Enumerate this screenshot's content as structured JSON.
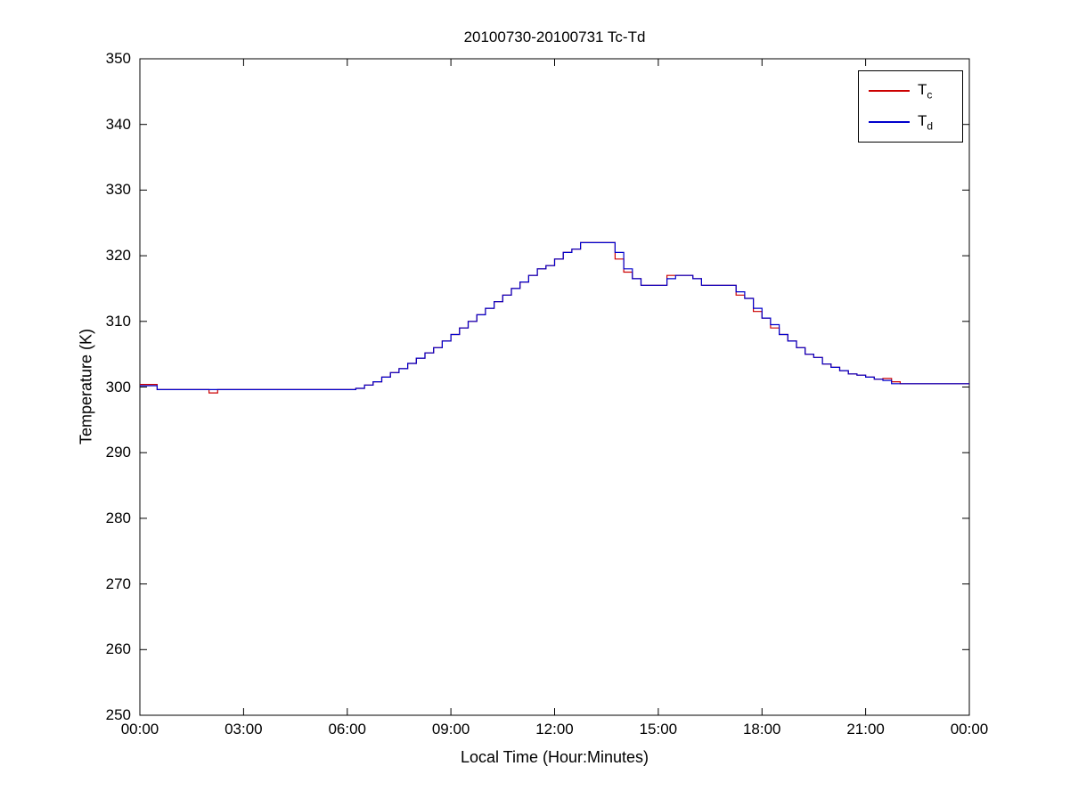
{
  "figure": {
    "background": "#ffffff",
    "axis_color": "#000000"
  },
  "chart_data": {
    "type": "line",
    "title": "20100730-20100731 Tc-Td",
    "xlabel": "Local Time (Hour:Minutes)",
    "ylabel": "Temperature (K)",
    "xlim": [
      0,
      24
    ],
    "ylim": [
      250,
      350
    ],
    "x_ticks": [
      0,
      3,
      6,
      9,
      12,
      15,
      18,
      21,
      24
    ],
    "x_tick_labels": [
      "00:00",
      "03:00",
      "06:00",
      "09:00",
      "12:00",
      "15:00",
      "18:00",
      "21:00",
      "00:00"
    ],
    "y_ticks": [
      250,
      260,
      270,
      280,
      290,
      300,
      310,
      320,
      330,
      340,
      350
    ],
    "y_tick_labels": [
      "250",
      "260",
      "270",
      "280",
      "290",
      "300",
      "310",
      "320",
      "330",
      "340",
      "350"
    ],
    "grid": false,
    "legend_position": "top-right",
    "interpolation": "step-after",
    "x_start_hours": 0,
    "x_step_hours": 0.25,
    "series": [
      {
        "name": "Tc",
        "label_main": "T",
        "label_sub": "c",
        "color": "#cc0000",
        "values": [
          300.4,
          300.4,
          299.6,
          299.6,
          299.6,
          299.6,
          299.6,
          299.6,
          299.1,
          299.6,
          299.6,
          299.6,
          299.6,
          299.6,
          299.6,
          299.6,
          299.6,
          299.6,
          299.6,
          299.6,
          299.6,
          299.6,
          299.6,
          299.6,
          299.6,
          299.8,
          300.3,
          300.8,
          301.5,
          302.2,
          302.8,
          303.6,
          304.4,
          305.2,
          306.0,
          307.0,
          308.0,
          309.0,
          310.0,
          311.0,
          312.0,
          313.0,
          314.0,
          315.0,
          316.0,
          317.0,
          318.0,
          318.5,
          319.5,
          320.5,
          321.0,
          322.0,
          322.0,
          322.0,
          322.0,
          319.5,
          317.5,
          316.5,
          315.5,
          315.5,
          315.5,
          317.0,
          317.0,
          317.0,
          316.5,
          315.5,
          315.5,
          315.5,
          315.5,
          314.0,
          313.5,
          311.5,
          310.5,
          309.0,
          308.0,
          307.0,
          306.0,
          305.0,
          304.5,
          303.5,
          303.0,
          302.5,
          302.0,
          301.8,
          301.5,
          301.2,
          301.3,
          300.8,
          300.5,
          300.5,
          300.5,
          300.5,
          300.5,
          300.5,
          300.5,
          300.5,
          300.5
        ]
      },
      {
        "name": "Td",
        "label_main": "T",
        "label_sub": "d",
        "color": "#0000cc",
        "values": [
          300.2,
          300.2,
          299.6,
          299.6,
          299.6,
          299.6,
          299.6,
          299.6,
          299.6,
          299.6,
          299.6,
          299.6,
          299.6,
          299.6,
          299.6,
          299.6,
          299.6,
          299.6,
          299.6,
          299.6,
          299.6,
          299.6,
          299.6,
          299.6,
          299.6,
          299.8,
          300.3,
          300.8,
          301.5,
          302.2,
          302.8,
          303.6,
          304.4,
          305.2,
          306.0,
          307.0,
          308.0,
          309.0,
          310.0,
          311.0,
          312.0,
          313.0,
          314.0,
          315.0,
          316.0,
          317.0,
          318.0,
          318.5,
          319.5,
          320.5,
          321.0,
          322.0,
          322.0,
          322.0,
          322.0,
          320.5,
          318.0,
          316.5,
          315.5,
          315.5,
          315.5,
          316.5,
          317.0,
          317.0,
          316.5,
          315.5,
          315.5,
          315.5,
          315.5,
          314.5,
          313.5,
          312.0,
          310.5,
          309.5,
          308.0,
          307.0,
          306.0,
          305.0,
          304.5,
          303.5,
          303.0,
          302.5,
          302.0,
          301.8,
          301.5,
          301.2,
          301.0,
          300.5,
          300.5,
          300.5,
          300.5,
          300.5,
          300.5,
          300.5,
          300.5,
          300.5,
          300.5
        ]
      }
    ]
  }
}
